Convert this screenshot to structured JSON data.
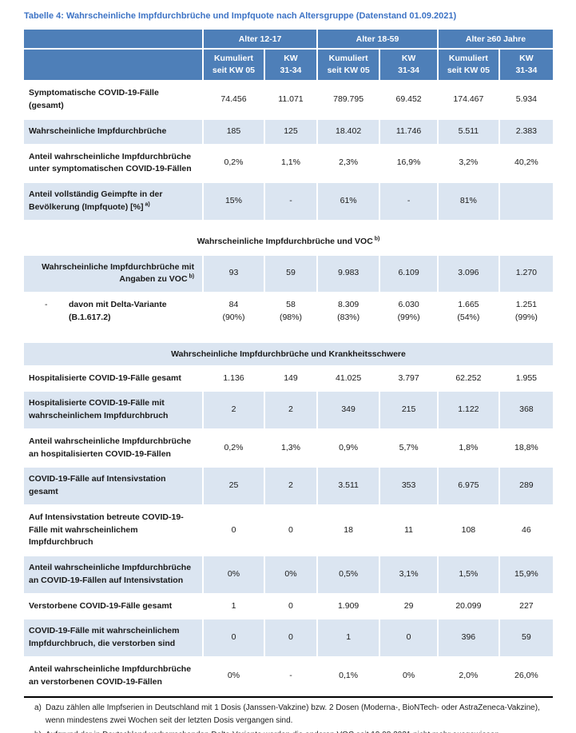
{
  "title": "Tabelle 4: Wahrscheinliche Impfdurchbrüche und Impfquote nach Altersgruppe (Datenstand 01.09.2021)",
  "colors": {
    "header_bg": "#4e7fb8",
    "row_shade": "#dbe5f1",
    "title_color": "#3d73c5",
    "header_text": "#ffffff"
  },
  "header": {
    "groups": [
      "Alter 12-17",
      "Alter 18-59",
      "Alter ≥60 Jahre"
    ],
    "sub_cumulative": "Kumuliert\nseit KW 05",
    "sub_week": "KW\n31-34"
  },
  "blocks": [
    {
      "type": "rows",
      "rows": [
        {
          "label": "Symptomatische COVID-19-Fälle (gesamt)",
          "shaded": false,
          "values": [
            "74.456",
            "11.071",
            "789.795",
            "69.452",
            "174.467",
            "5.934"
          ]
        },
        {
          "label": "Wahrscheinliche Impfdurchbrüche",
          "shaded": true,
          "values": [
            "185",
            "125",
            "18.402",
            "11.746",
            "5.511",
            "2.383"
          ]
        },
        {
          "label": "Anteil wahrscheinliche Impfdurchbrüche unter symptomatischen COVID-19-Fällen",
          "shaded": false,
          "values": [
            "0,2%",
            "1,1%",
            "2,3%",
            "16,9%",
            "3,2%",
            "40,2%"
          ]
        },
        {
          "label": "Anteil vollständig Geimpfte in der Bevölkerung (Impfquote) [%]",
          "sup": "a)",
          "shaded": true,
          "values": [
            "15%",
            "-",
            "61%",
            "-",
            "81%",
            ""
          ]
        }
      ]
    },
    {
      "type": "heading",
      "style": "plain",
      "text": "Wahrscheinliche Impfdurchbrüche und VOC",
      "sup": "b)"
    },
    {
      "type": "rows",
      "rows": [
        {
          "label": "Wahrscheinliche Impfdurchbrüche mit Angaben zu VOC",
          "sup": "b)",
          "align": "right",
          "shaded": true,
          "values": [
            "93",
            "59",
            "9.983",
            "6.109",
            "3.096",
            "1.270"
          ]
        },
        {
          "label": "davon mit Delta-Variante (B.1.617.2)",
          "dash": "-",
          "shaded": false,
          "values": [
            "84",
            "58",
            "8.309",
            "6.030",
            "1.665",
            "1.251"
          ],
          "sub_values": [
            "(90%)",
            "(98%)",
            "(83%)",
            "(99%)",
            "(54%)",
            "(99%)"
          ]
        }
      ]
    },
    {
      "type": "heading",
      "style": "band",
      "text": "Wahrscheinliche Impfdurchbrüche und Krankheitsschwere"
    },
    {
      "type": "rows",
      "rows": [
        {
          "label": "Hospitalisierte COVID-19-Fälle gesamt",
          "shaded": false,
          "values": [
            "1.136",
            "149",
            "41.025",
            "3.797",
            "62.252",
            "1.955"
          ]
        },
        {
          "label": "Hospitalisierte COVID-19-Fälle mit wahrscheinlichem Impfdurchbruch",
          "shaded": true,
          "values": [
            "2",
            "2",
            "349",
            "215",
            "1.122",
            "368"
          ]
        },
        {
          "label": "Anteil wahrscheinliche Impfdurchbrüche an hospitalisierten COVID-19-Fällen",
          "shaded": false,
          "values": [
            "0,2%",
            "1,3%",
            "0,9%",
            "5,7%",
            "1,8%",
            "18,8%"
          ]
        },
        {
          "label": "COVID-19-Fälle auf Intensivstation gesamt",
          "shaded": true,
          "values": [
            "25",
            "2",
            "3.511",
            "353",
            "6.975",
            "289"
          ]
        },
        {
          "label": "Auf Intensivstation betreute COVID-19-Fälle mit wahrscheinlichem Impfdurchbruch",
          "shaded": false,
          "values": [
            "0",
            "0",
            "18",
            "11",
            "108",
            "46"
          ]
        },
        {
          "label": "Anteil wahrscheinliche Impfdurchbrüche an COVID-19-Fällen auf Intensivstation",
          "shaded": true,
          "values": [
            "0%",
            "0%",
            "0,5%",
            "3,1%",
            "1,5%",
            "15,9%"
          ]
        },
        {
          "label": "Verstorbene COVID-19-Fälle gesamt",
          "shaded": false,
          "values": [
            "1",
            "0",
            "1.909",
            "29",
            "20.099",
            "227"
          ]
        },
        {
          "label": "COVID-19-Fälle mit wahrscheinlichem Impfdurchbruch, die verstorben sind",
          "shaded": true,
          "values": [
            "0",
            "0",
            "1",
            "0",
            "396",
            "59"
          ]
        },
        {
          "label": "Anteil wahrscheinliche Impfdurchbrüche an verstorbenen COVID-19-Fällen",
          "shaded": false,
          "values": [
            "0%",
            "-",
            "0,1%",
            "0%",
            "2,0%",
            "26,0%"
          ]
        }
      ]
    }
  ],
  "footnotes": [
    {
      "marker": "a)",
      "text": "Dazu zählen alle Impfserien in Deutschland mit 1 Dosis (Janssen-Vakzine) bzw. 2 Dosen (Moderna-, BioNTech- oder AstraZeneca-Vakzine), wenn mindestens zwei Wochen seit der letzten Dosis vergangen sind."
    },
    {
      "marker": "b)",
      "text": "Aufgrund der in Deutschland vorherrschenden Delta-Variante werden die anderen VOC seit 19.08.2021 nicht mehr ausgewiesen."
    }
  ]
}
